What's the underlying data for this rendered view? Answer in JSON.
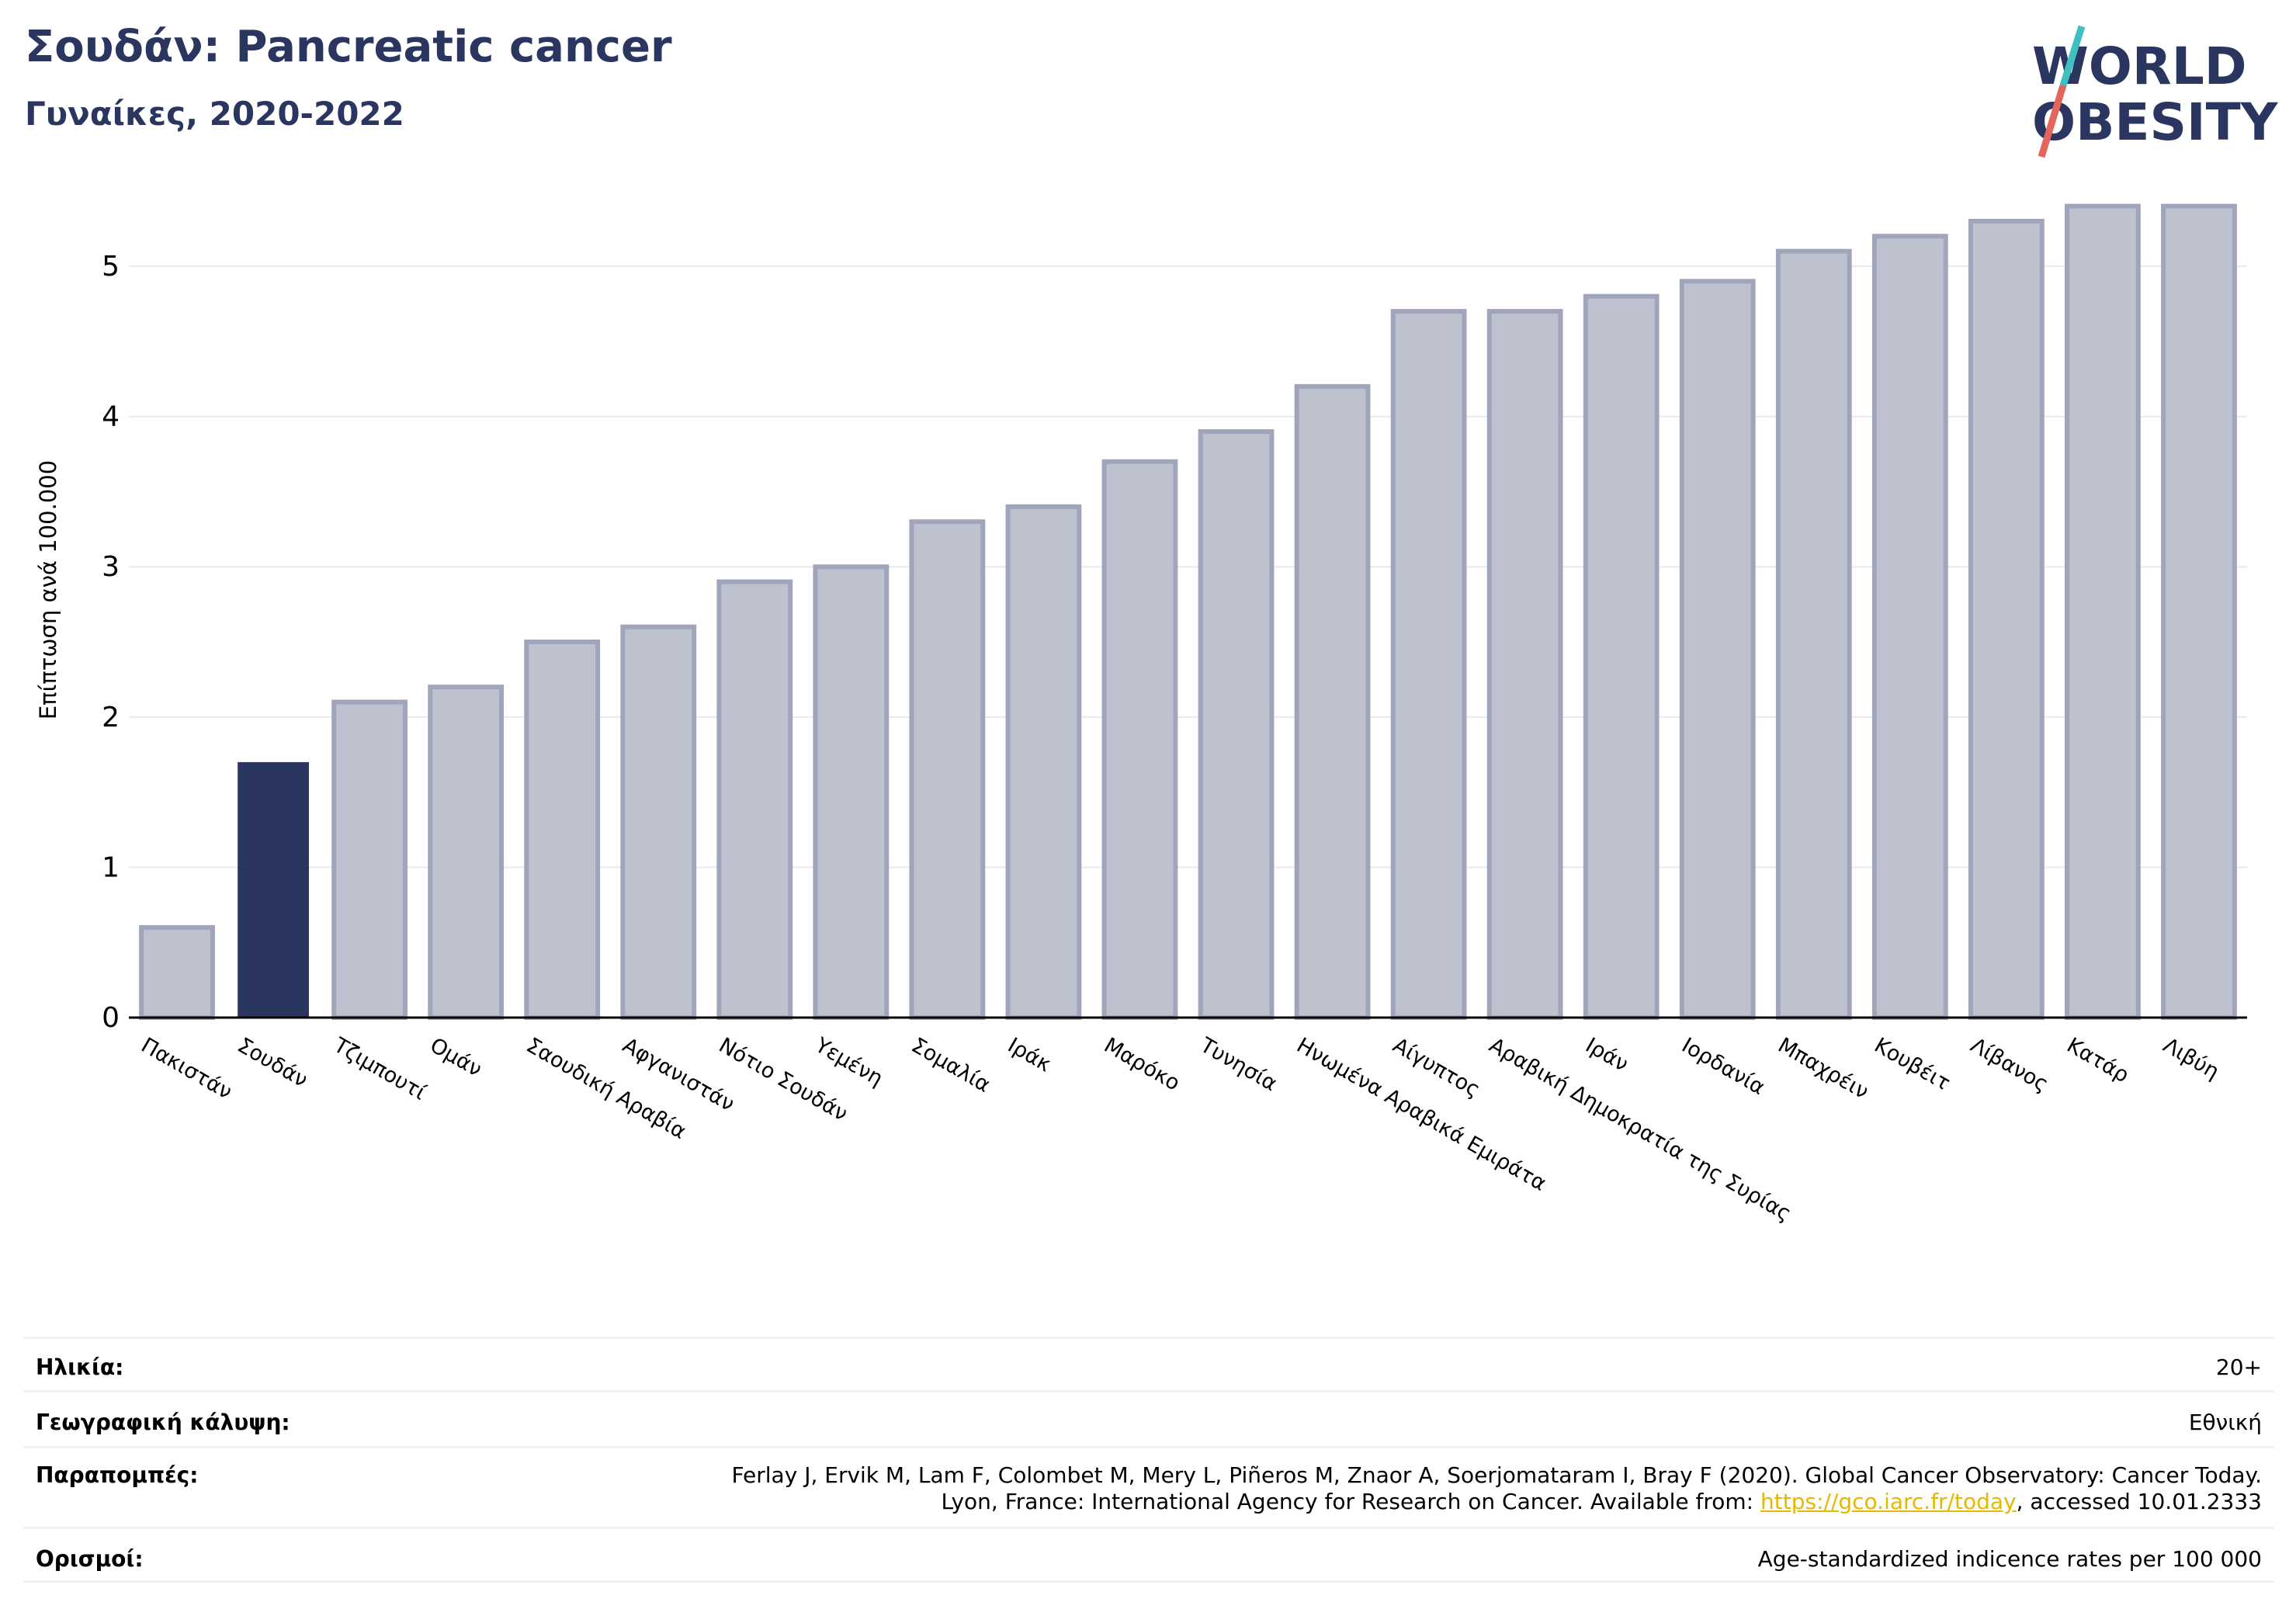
{
  "header": {
    "title": "Σουδάν: Pancreatic cancer",
    "subtitle": "Γυναίκες, 2020-2022"
  },
  "logo": {
    "line1": "WORLD",
    "line2": "OBESITY",
    "colors": {
      "text": "#2b3660",
      "slash_top": "#3fbfbf",
      "slash_bottom": "#e4665a"
    }
  },
  "chart_data": {
    "type": "bar",
    "ylabel": "Επίπτωση ανά 100.000",
    "ylim": [
      0,
      5.5
    ],
    "yticks": [
      0,
      1,
      2,
      3,
      4,
      5
    ],
    "grid": true,
    "highlight": "Σουδάν",
    "colors": {
      "highlight": "#2b3660",
      "bar_fill": "#bec1ce",
      "bar_edge": "#a0a5bc"
    },
    "categories": [
      "Πακιστάν",
      "Σουδάν",
      "Τζιμπουτί",
      "Ομάν",
      "Σαουδική Αραβία",
      "Αφγανιστάν",
      "Νότιο Σουδάν",
      "Υεμένη",
      "Σομαλία",
      "Ιράκ",
      "Μαρόκο",
      "Τυνησία",
      "Ηνωμένα Αραβικά Εμιράτα",
      "Αίγυπτος",
      "Αραβική Δημοκρατία της Συρίας",
      "Ιράν",
      "Ιορδανία",
      "Μπαχρέιν",
      "Κουβέιτ",
      "Λίβανος",
      "Κατάρ",
      "Λιβύη"
    ],
    "values": [
      0.6,
      1.7,
      2.1,
      2.2,
      2.5,
      2.6,
      2.9,
      3.0,
      3.3,
      3.4,
      3.7,
      3.9,
      4.2,
      4.7,
      4.7,
      4.8,
      4.9,
      5.1,
      5.2,
      5.3,
      5.4,
      5.4
    ]
  },
  "info": {
    "age_label": "Ηλικία:",
    "age_value": "20+",
    "geo_label": "Γεωγραφική κάλυψη:",
    "geo_value": "Εθνική",
    "ref_label": "Παραπομπές:",
    "ref_line1": "Ferlay J, Ervik M, Lam F, Colombet M, Mery L, Piñeros M, Znaor A, Soerjomataram I, Bray F (2020). Global Cancer Observatory: Cancer Today.",
    "ref_line2_pre": "Lyon, France: International Agency for Research on Cancer. Available from: ",
    "ref_link": "https://gco.iarc.fr/today",
    "ref_line2_post": ", accessed 10.01.2333",
    "def_label": "Ορισμοί:",
    "def_value": "Age-standardized indicence rates per 100 000"
  }
}
